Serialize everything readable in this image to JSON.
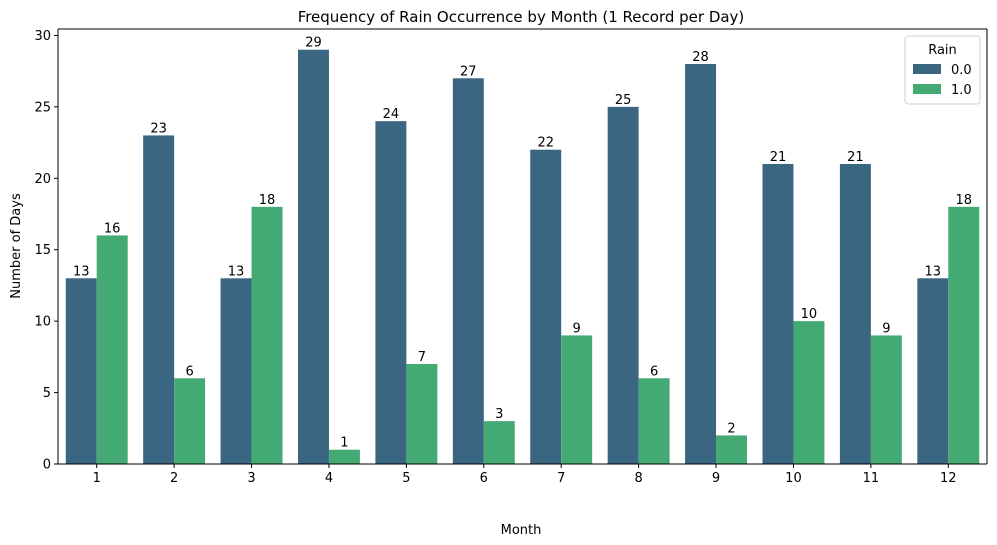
{
  "chart_data": {
    "type": "bar",
    "title": "Frequency of Rain Occurrence by Month (1 Record per Day)",
    "xlabel": "Month",
    "ylabel": "Number of Days",
    "categories": [
      "1",
      "2",
      "3",
      "4",
      "5",
      "6",
      "7",
      "8",
      "9",
      "10",
      "11",
      "12"
    ],
    "series": [
      {
        "name": "0.0",
        "color": "#3b6682",
        "values": [
          13,
          23,
          13,
          29,
          24,
          27,
          22,
          25,
          28,
          21,
          21,
          13
        ]
      },
      {
        "name": "1.0",
        "color": "#43aa74",
        "values": [
          16,
          6,
          18,
          1,
          7,
          3,
          9,
          6,
          2,
          10,
          9,
          18
        ]
      }
    ],
    "ylim": [
      0,
      30.45
    ],
    "yticks": [
      0,
      5,
      10,
      15,
      20,
      25,
      30
    ],
    "legend": {
      "title": "Rain",
      "placement": "top-right"
    },
    "grid": false
  }
}
